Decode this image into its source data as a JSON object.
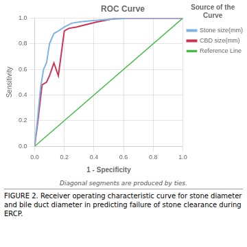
{
  "chart_data": {
    "type": "line",
    "title": "ROC Curve",
    "subtitle": "Diagonal segments are produced by ties.",
    "caption": "FIGURE 2. Receiver operating characteristic curve for stone diameter\nand bile duct diameter in predicting failure of stone clearance during\nERCP.",
    "xlabel": "1 - Specificity",
    "ylabel": "Sensitivity",
    "legend_title": "Source of the\nCurve",
    "xlim": [
      0.0,
      1.0
    ],
    "ylim": [
      0.0,
      1.0
    ],
    "xticks": [
      {
        "value": 0,
        "label": "0.0"
      },
      0.2,
      0.4,
      0.6,
      0.8,
      {
        "value": 1,
        "label": "1.0"
      }
    ],
    "yticks": [
      {
        "value": 0,
        "label": "0.0"
      },
      0.2,
      0.4,
      0.6,
      0.8,
      {
        "value": 1,
        "label": "1.0"
      }
    ],
    "grid": true,
    "series": [
      {
        "name": "Stone size(mm)",
        "color": "#7EB4E3",
        "x": [
          0.0,
          0.02,
          0.04,
          0.06,
          0.08,
          0.1,
          0.13,
          0.16,
          0.2,
          0.25,
          0.3,
          0.38,
          0.5,
          0.65,
          0.8,
          1.0
        ],
        "values": [
          0.0,
          0.22,
          0.46,
          0.6,
          0.65,
          0.8,
          0.88,
          0.9,
          0.93,
          0.96,
          0.97,
          0.98,
          0.99,
          1.0,
          1.0,
          1.0
        ]
      },
      {
        "name": "CBD size(mm)",
        "color": "#CC3355",
        "x": [
          0.0,
          0.02,
          0.05,
          0.08,
          0.1,
          0.13,
          0.16,
          0.2,
          0.23,
          0.28,
          0.35,
          0.42,
          0.55,
          0.7,
          0.85,
          1.0
        ],
        "values": [
          0.0,
          0.18,
          0.48,
          0.5,
          0.55,
          0.65,
          0.55,
          0.9,
          0.92,
          0.93,
          0.95,
          0.97,
          1.0,
          1.0,
          1.0,
          1.0
        ]
      },
      {
        "name": "Reference Line",
        "color": "#44BB44",
        "x": [
          0.0,
          1.0
        ],
        "values": [
          0.0,
          1.0
        ]
      }
    ]
  }
}
